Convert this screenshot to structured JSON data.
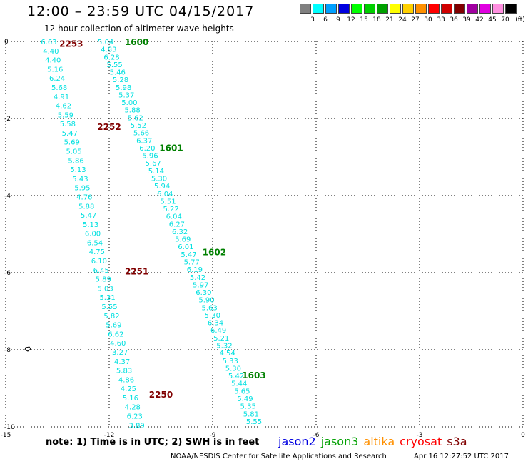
{
  "title": "12:00 – 23:59 UTC 04/15/2017",
  "subtitle": "12 hour collection of altimeter wave heights",
  "legend": {
    "unit": "(ft)",
    "bins": [
      {
        "label": "3",
        "color": "#808080"
      },
      {
        "label": "6",
        "color": "#00ffff"
      },
      {
        "label": "9",
        "color": "#00a0ff"
      },
      {
        "label": "12",
        "color": "#0000e0"
      },
      {
        "label": "15",
        "color": "#00ff00"
      },
      {
        "label": "18",
        "color": "#00d000"
      },
      {
        "label": "21",
        "color": "#00a000"
      },
      {
        "label": "24",
        "color": "#ffff00"
      },
      {
        "label": "27",
        "color": "#ffd000"
      },
      {
        "label": "30",
        "color": "#ff9000"
      },
      {
        "label": "33",
        "color": "#ff0000"
      },
      {
        "label": "36",
        "color": "#d00000"
      },
      {
        "label": "39",
        "color": "#800000"
      },
      {
        "label": "42",
        "color": "#a000a0"
      },
      {
        "label": "45",
        "color": "#e000e0"
      },
      {
        "label": "70",
        "color": "#ff90e0"
      },
      {
        "label": "",
        "color": "#000000"
      }
    ]
  },
  "colors": {
    "swh": "#00e0e0",
    "jason2_time": "#008000",
    "jason3_time": "#008000",
    "other_time": "#800000"
  },
  "map": {
    "lon_range": [
      -15,
      0
    ],
    "lat_range": [
      -10,
      0
    ],
    "x_ticks": [
      "-15",
      "-12",
      "-9",
      "-6",
      "-3",
      "0"
    ],
    "y_ticks": [
      "0",
      "-2",
      "-4",
      "-6",
      "-8",
      "-10"
    ]
  },
  "tracks": [
    {
      "name": "track-west",
      "color": "#00e0e0",
      "lon_start": -13.75,
      "lat_start": 0,
      "lon_end": -11.2,
      "lat_end": -9.95,
      "values": [
        "6.63",
        "4.40",
        "4.40",
        "5.16",
        "6.24",
        "5.68",
        "4.91",
        "4.62",
        "5.59",
        "5.58",
        "5.47",
        "5.69",
        "5.05",
        "5.86",
        "5.13",
        "5.43",
        "5.95",
        "4.76",
        "5.88",
        "5.47",
        "5.13",
        "6.00",
        "6.54",
        "4.75",
        "6.10",
        "6.45",
        "5.89",
        "5.03",
        "5.31",
        "5.55",
        "5.82",
        "5.69",
        "6.62",
        "4.60",
        "3.27",
        "4.37",
        "5.83",
        "4.86",
        "4.25",
        "5.16",
        "4.28",
        "6.23",
        "3.89"
      ]
    },
    {
      "name": "track-east",
      "color": "#00e0e0",
      "lon_start": -12.1,
      "lat_start": 0,
      "lon_end": -7.8,
      "lat_end": -9.85,
      "values": [
        "5.04",
        "4.83",
        "6.28",
        "5.55",
        "5.46",
        "5.28",
        "5.98",
        "5.37",
        "5.00",
        "5.88",
        "5.62",
        "5.52",
        "5.66",
        "6.37",
        "6.20",
        "5.96",
        "5.67",
        "5.14",
        "5.30",
        "5.94",
        "6.04",
        "5.51",
        "5.22",
        "6.04",
        "6.27",
        "6.32",
        "5.69",
        "6.01",
        "5.47",
        "5.77",
        "6.19",
        "5.42",
        "5.97",
        "6.30",
        "5.90",
        "5.63",
        "5.30",
        "6.34",
        "6.49",
        "5.21",
        "5.32",
        "4.54",
        "5.33",
        "5.30",
        "5.42",
        "5.44",
        "5.65",
        "5.49",
        "5.35",
        "5.81",
        "5.55"
      ]
    }
  ],
  "time_labels": [
    {
      "text": "2253",
      "lon": -13.1,
      "lat": -0.05,
      "color": "#800000"
    },
    {
      "text": "1600",
      "lon": -11.2,
      "lat": 0.0,
      "color": "#008000"
    },
    {
      "text": "2252",
      "lon": -12.0,
      "lat": -2.2,
      "color": "#800000"
    },
    {
      "text": "1601",
      "lon": -10.2,
      "lat": -2.75,
      "color": "#008000"
    },
    {
      "text": "2251",
      "lon": -11.2,
      "lat": -5.95,
      "color": "#800000"
    },
    {
      "text": "1602",
      "lon": -8.95,
      "lat": -5.45,
      "color": "#008000"
    },
    {
      "text": "1603",
      "lon": -7.8,
      "lat": -8.65,
      "color": "#008000"
    },
    {
      "text": "2250",
      "lon": -10.5,
      "lat": -9.15,
      "color": "#800000"
    }
  ],
  "note": "note:  1) Time is in UTC; 2) SWH is in feet",
  "satellites": [
    {
      "name": "jason2",
      "color": "#0000e0"
    },
    {
      "name": "jason3",
      "color": "#00a000"
    },
    {
      "name": "altika",
      "color": "#ff9000"
    },
    {
      "name": "cryosat",
      "color": "#ff0000"
    },
    {
      "name": "s3a",
      "color": "#800000"
    }
  ],
  "credit": "NOAA/NESDIS Center for Satellite Applications and Research",
  "timestamp": "Apr 16 12:27:52 UTC 2017"
}
